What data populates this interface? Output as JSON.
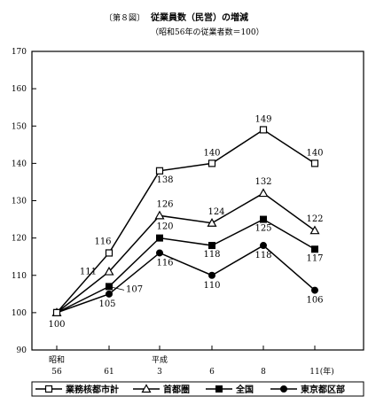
{
  "chart_data": {
    "type": "line",
    "title_prefix": "〔第８図〕",
    "title": "従業員数（民営）の増減",
    "subtitle": "（昭和56年の従業者数＝100）",
    "xlabel": "",
    "ylabel": "",
    "ylim": [
      90,
      170
    ],
    "yticks": [
      "90",
      "100",
      "110",
      "120",
      "130",
      "140",
      "150",
      "160",
      "170"
    ],
    "x_labels": [
      {
        "era": "昭和",
        "year": "56"
      },
      {
        "era": "",
        "year": "61"
      },
      {
        "era": "平成",
        "year": "3"
      },
      {
        "era": "",
        "year": "6"
      },
      {
        "era": "",
        "year": "8"
      },
      {
        "era": "",
        "year": "11(年)"
      }
    ],
    "grid": false,
    "legend_position": "bottom",
    "series": [
      {
        "name": "業務核都市計",
        "marker": "open-square",
        "values": [
          100,
          116,
          138,
          140,
          149,
          140
        ],
        "labels": [
          "",
          "116",
          "138",
          "140",
          "149",
          "140"
        ]
      },
      {
        "name": "首都圏",
        "marker": "open-triangle",
        "values": [
          100,
          111,
          126,
          124,
          132,
          122
        ],
        "labels": [
          "",
          "111",
          "126",
          "124",
          "132",
          "122"
        ]
      },
      {
        "name": "全国",
        "marker": "filled-square",
        "values": [
          100,
          107,
          120,
          118,
          125,
          117
        ],
        "labels": [
          "",
          "107",
          "120",
          "118",
          "125",
          "117"
        ]
      },
      {
        "name": "東京都区部",
        "marker": "filled-circle",
        "values": [
          100,
          105,
          116,
          110,
          118,
          106
        ],
        "labels": [
          "100",
          "105",
          "116",
          "110",
          "118",
          "106"
        ]
      }
    ]
  }
}
